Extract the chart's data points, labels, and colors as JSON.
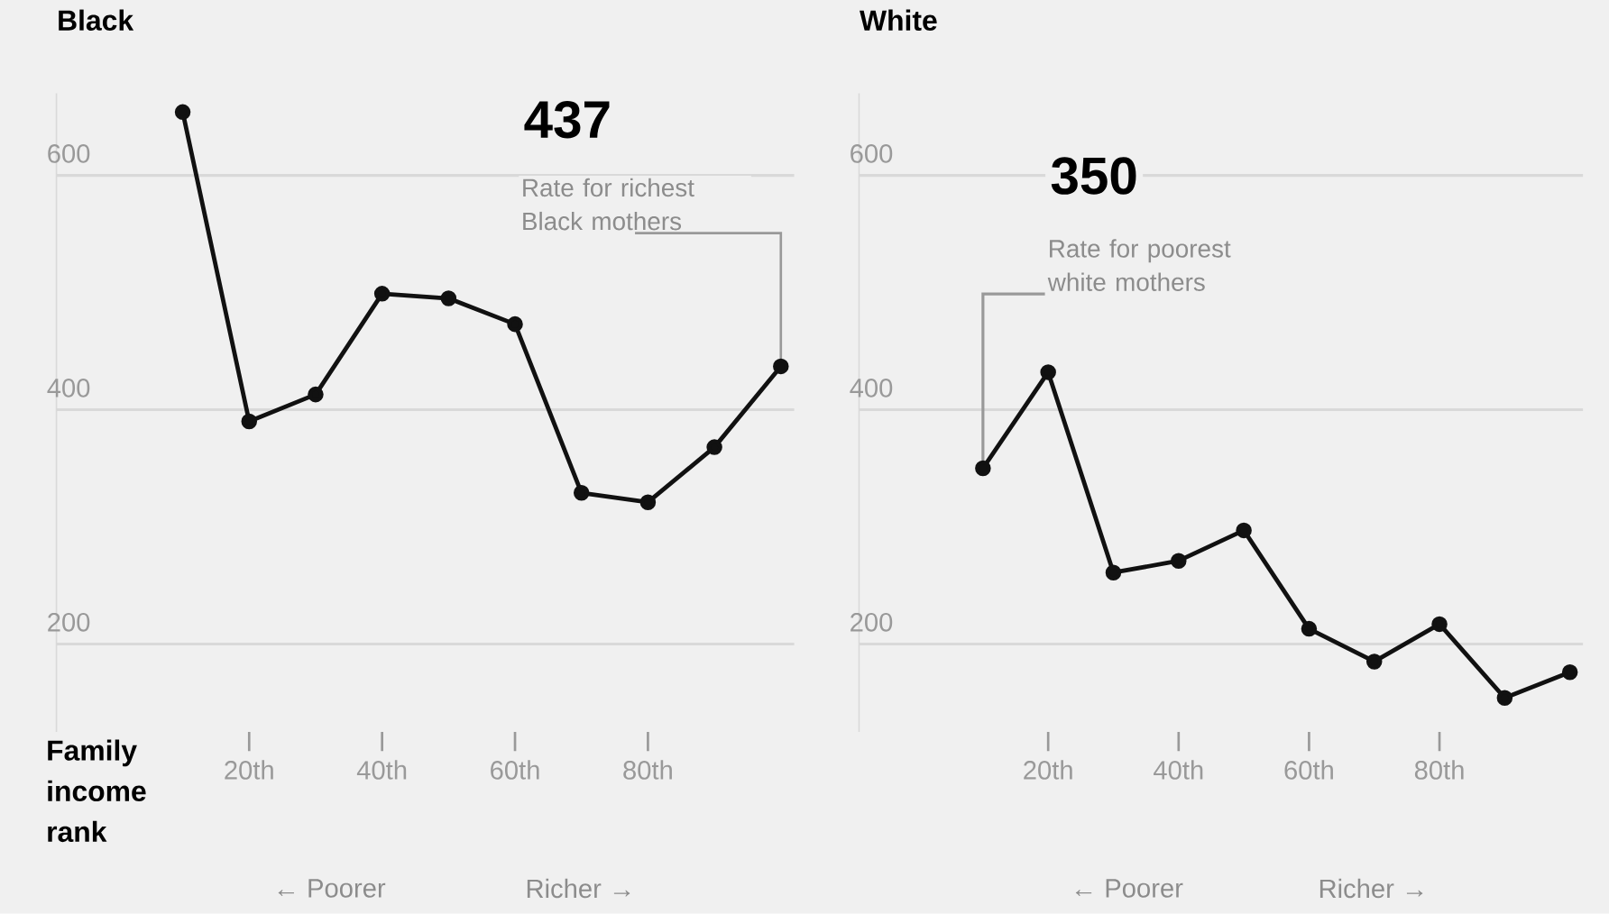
{
  "chart_data": [
    {
      "type": "line",
      "title": "Black",
      "xlabel": "Family income rank",
      "x": [
        10,
        20,
        30,
        40,
        50,
        60,
        70,
        80,
        90,
        100
      ],
      "values": [
        654,
        390,
        413,
        499,
        495,
        473,
        329,
        321,
        368,
        437
      ],
      "color": "#111111",
      "marker": "circle",
      "line_style": "solid",
      "grid": "y",
      "xlim": [
        -9,
        102
      ],
      "xticks": [
        {
          "value": 20,
          "label": "20th"
        },
        {
          "value": 40,
          "label": "40th"
        },
        {
          "value": 60,
          "label": "60th"
        },
        {
          "value": 80,
          "label": "80th"
        }
      ],
      "ylim": [
        125,
        670
      ],
      "yticks": [
        200,
        400,
        600
      ],
      "annotations": [
        "437",
        {
          "text": "Rate for richest Black mothers",
          "x": 100,
          "y": 437
        },
        "← Poorer",
        "Richer →"
      ]
    },
    {
      "type": "line",
      "title": "White",
      "x": [
        10,
        20,
        30,
        40,
        50,
        60,
        70,
        80,
        90,
        100
      ],
      "values": [
        350,
        432,
        261,
        271,
        297,
        213,
        185,
        217,
        154,
        176
      ],
      "color": "#111111",
      "marker": "circle",
      "line_style": "solid",
      "grid": "y",
      "xlim": [
        -9,
        102
      ],
      "xticks": [
        {
          "value": 20,
          "label": "20th"
        },
        {
          "value": 40,
          "label": "40th"
        },
        {
          "value": 60,
          "label": "60th"
        },
        {
          "value": 80,
          "label": "80th"
        }
      ],
      "ylim": [
        125,
        670
      ],
      "yticks": [
        200,
        400,
        600
      ],
      "annotations": [
        "350",
        {
          "text": "Rate for poorest white mothers",
          "x": 10,
          "y": 350
        },
        "← Poorer",
        "Richer →"
      ]
    }
  ]
}
